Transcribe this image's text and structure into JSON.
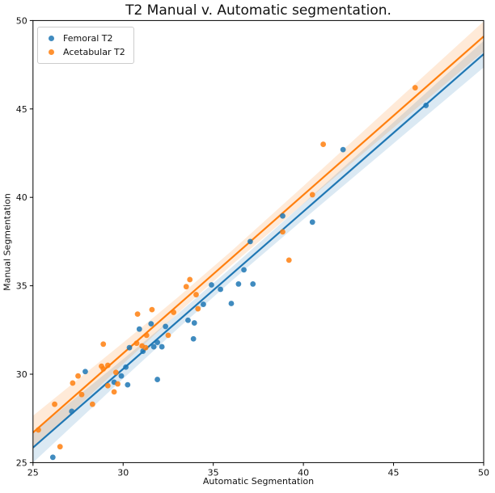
{
  "title": "T2 Manual v. Automatic segmentation.",
  "chart_data": {
    "type": "scatter",
    "title": "T2 Manual v. Automatic segmentation.",
    "xlabel": "Automatic Segmentation",
    "ylabel": "Manual Segmentation",
    "xlim": [
      25,
      50
    ],
    "ylim": [
      25,
      50
    ],
    "xticks": [
      25,
      30,
      35,
      40,
      45,
      50
    ],
    "yticks": [
      25,
      30,
      35,
      40,
      45,
      50
    ],
    "grid": false,
    "legend_position": "upper left",
    "marker_radius": 3.4,
    "series": [
      {
        "name": "Femoral T2",
        "color": "#1f77b4",
        "points": [
          [
            26.1,
            25.3
          ],
          [
            27.15,
            27.9
          ],
          [
            27.9,
            30.15
          ],
          [
            29.5,
            29.55
          ],
          [
            29.9,
            29.9
          ],
          [
            30.25,
            29.4
          ],
          [
            30.15,
            30.4
          ],
          [
            30.35,
            31.5
          ],
          [
            30.9,
            32.55
          ],
          [
            31.55,
            32.85
          ],
          [
            31.1,
            31.3
          ],
          [
            31.7,
            31.55
          ],
          [
            31.9,
            31.8
          ],
          [
            32.15,
            31.55
          ],
          [
            32.35,
            32.7
          ],
          [
            31.9,
            29.7
          ],
          [
            33.6,
            33.05
          ],
          [
            33.95,
            32.9
          ],
          [
            33.9,
            32.0
          ],
          [
            34.45,
            33.95
          ],
          [
            34.9,
            35.05
          ],
          [
            35.4,
            34.8
          ],
          [
            36.0,
            34.0
          ],
          [
            36.4,
            35.1
          ],
          [
            37.2,
            35.1
          ],
          [
            36.7,
            35.9
          ],
          [
            37.05,
            37.5
          ],
          [
            38.85,
            38.95
          ],
          [
            40.5,
            38.6
          ],
          [
            42.2,
            42.7
          ],
          [
            46.8,
            45.2
          ]
        ],
        "regression": {
          "x": [
            25,
            50
          ],
          "y": [
            25.85,
            48.1
          ]
        },
        "ci_band": {
          "x": [
            25,
            30,
            33,
            36,
            40,
            45,
            50
          ],
          "halfwidth": [
            0.85,
            0.55,
            0.42,
            0.38,
            0.45,
            0.6,
            0.75
          ]
        }
      },
      {
        "name": "Acetabular T2",
        "color": "#ff7f0e",
        "points": [
          [
            25.3,
            26.85
          ],
          [
            26.2,
            28.3
          ],
          [
            26.5,
            25.9
          ],
          [
            27.2,
            29.5
          ],
          [
            27.5,
            29.9
          ],
          [
            27.7,
            28.85
          ],
          [
            28.3,
            28.3
          ],
          [
            28.8,
            30.45
          ],
          [
            28.9,
            30.3
          ],
          [
            28.9,
            31.7
          ],
          [
            29.15,
            29.35
          ],
          [
            29.5,
            29.0
          ],
          [
            29.15,
            30.5
          ],
          [
            29.6,
            30.1
          ],
          [
            29.7,
            29.45
          ],
          [
            30.75,
            31.75
          ],
          [
            31.05,
            31.6
          ],
          [
            31.25,
            31.5
          ],
          [
            30.8,
            33.4
          ],
          [
            31.6,
            33.65
          ],
          [
            31.3,
            32.2
          ],
          [
            32.5,
            32.2
          ],
          [
            32.8,
            33.5
          ],
          [
            34.15,
            33.7
          ],
          [
            33.5,
            34.95
          ],
          [
            33.7,
            35.35
          ],
          [
            34.05,
            34.5
          ],
          [
            38.85,
            38.05
          ],
          [
            39.2,
            36.45
          ],
          [
            40.5,
            40.15
          ],
          [
            41.1,
            43.0
          ],
          [
            46.2,
            46.2
          ]
        ],
        "regression": {
          "x": [
            25,
            50
          ],
          "y": [
            26.7,
            49.1
          ]
        },
        "ci_band": {
          "x": [
            25,
            30,
            33,
            36,
            40,
            45,
            50
          ],
          "halfwidth": [
            0.95,
            0.6,
            0.45,
            0.4,
            0.5,
            0.68,
            0.85
          ]
        }
      }
    ]
  }
}
